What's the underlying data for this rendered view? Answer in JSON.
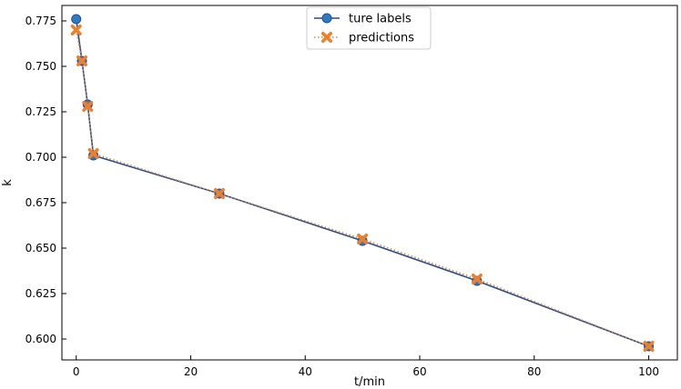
{
  "chart_data": {
    "type": "line",
    "title": "",
    "xlabel": "t/min",
    "ylabel": "k",
    "xlim": [
      -2.5,
      105
    ],
    "ylim": [
      0.5885,
      0.7835
    ],
    "xticks": [
      0,
      20,
      40,
      60,
      80,
      100
    ],
    "yticks": [
      0.6,
      0.625,
      0.65,
      0.675,
      0.7,
      0.725,
      0.75,
      0.775
    ],
    "grid": false,
    "legend_position": "top-center",
    "series": [
      {
        "name": "ture labels",
        "color": "#1f4e9a",
        "marker_color": "#2e7bbf",
        "marker": "circle",
        "linestyle": "solid",
        "x": [
          0,
          1,
          2,
          3,
          25,
          50,
          70,
          100
        ],
        "y": [
          0.776,
          0.753,
          0.729,
          0.701,
          0.68,
          0.654,
          0.632,
          0.596
        ]
      },
      {
        "name": "predictions",
        "color": "#f07f2a",
        "marker_color": "#f07f2a",
        "marker": "x",
        "linestyle": "dotted",
        "x": [
          0,
          1,
          2,
          3,
          25,
          50,
          70,
          100
        ],
        "y": [
          0.77,
          0.753,
          0.728,
          0.702,
          0.68,
          0.655,
          0.633,
          0.596
        ]
      }
    ]
  }
}
